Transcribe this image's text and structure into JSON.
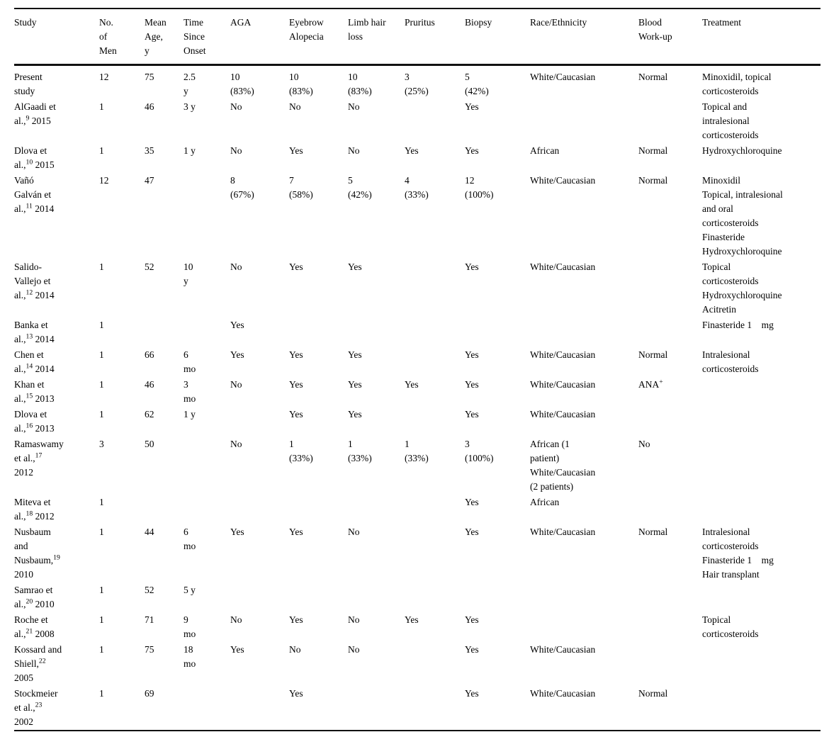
{
  "table": {
    "columns": [
      {
        "key": "study",
        "label": "Study"
      },
      {
        "key": "n_men",
        "label": "No.\nof\nMen"
      },
      {
        "key": "mean_age",
        "label": "Mean\nAge,\ny"
      },
      {
        "key": "onset",
        "label": "Time\nSince\nOnset"
      },
      {
        "key": "aga",
        "label": "AGA"
      },
      {
        "key": "eyebrow",
        "label": "Eyebrow\nAlopecia"
      },
      {
        "key": "limb",
        "label": "Limb hair\nloss"
      },
      {
        "key": "pruritus",
        "label": "Pruritus"
      },
      {
        "key": "biopsy",
        "label": "Biopsy"
      },
      {
        "key": "race",
        "label": "Race/Ethnicity"
      },
      {
        "key": "blood",
        "label": "Blood\nWork-up"
      },
      {
        "key": "treatment",
        "label": "Treatment"
      }
    ],
    "rows": [
      {
        "study": "Present\nstudy",
        "n_men": "12",
        "mean_age": "75",
        "onset": "2.5\ny",
        "aga": "10\n(83%)",
        "eyebrow": "10\n(83%)",
        "limb": "10\n(83%)",
        "pruritus": "3\n(25%)",
        "biopsy": "5\n(42%)",
        "race": "White/Caucasian",
        "blood": "Normal",
        "treatment": "Minoxidil, topical\ncorticosteroids"
      },
      {
        "study": "AlGaadi et\nal.,^{9} 2015",
        "n_men": "1",
        "mean_age": "46",
        "onset": "3 y",
        "aga": "No",
        "eyebrow": "No",
        "limb": "No",
        "pruritus": "",
        "biopsy": "Yes",
        "race": "",
        "blood": "",
        "treatment": "Topical and\nintralesional\ncorticosteroids"
      },
      {
        "study": "Dlova et\nal.,^{10} 2015",
        "n_men": "1",
        "mean_age": "35",
        "onset": "1 y",
        "aga": "No",
        "eyebrow": "Yes",
        "limb": "No",
        "pruritus": "Yes",
        "biopsy": "Yes",
        "race": "African",
        "blood": "Normal",
        "treatment": "Hydroxychloroquine"
      },
      {
        "study": "Vañó\nGalván et\nal.,^{11} 2014",
        "n_men": "12",
        "mean_age": "47",
        "onset": "",
        "aga": "8\n(67%)",
        "eyebrow": "7\n(58%)",
        "limb": "5\n(42%)",
        "pruritus": "4\n(33%)",
        "biopsy": "12\n(100%)",
        "race": "White/Caucasian",
        "blood": "Normal",
        "treatment": "Minoxidil\nTopical, intralesional\nand oral\ncorticosteroids\nFinasteride\nHydroxychloroquine"
      },
      {
        "study": "Salido-\nVallejo et\nal.,^{12} 2014",
        "n_men": "1",
        "mean_age": "52",
        "onset": "10\ny",
        "aga": "No",
        "eyebrow": "Yes",
        "limb": "Yes",
        "pruritus": "",
        "biopsy": "Yes",
        "race": "White/Caucasian",
        "blood": "",
        "treatment": "Topical\ncorticosteroids\nHydroxychloroquine\nAcitretin"
      },
      {
        "study": "Banka et\nal.,^{13} 2014",
        "n_men": "1",
        "mean_age": "",
        "onset": "",
        "aga": "Yes",
        "eyebrow": "",
        "limb": "",
        "pruritus": "",
        "biopsy": "",
        "race": "",
        "blood": "",
        "treatment": "Finasteride 1    mg"
      },
      {
        "study": "Chen et\nal.,^{14} 2014",
        "n_men": "1",
        "mean_age": "66",
        "onset": "6\nmo",
        "aga": "Yes",
        "eyebrow": "Yes",
        "limb": "Yes",
        "pruritus": "",
        "biopsy": "Yes",
        "race": "White/Caucasian",
        "blood": "Normal",
        "treatment": "Intralesional\ncorticosteroids"
      },
      {
        "study": "Khan et\nal.,^{15} 2013",
        "n_men": "1",
        "mean_age": "46",
        "onset": "3\nmo",
        "aga": "No",
        "eyebrow": "Yes",
        "limb": "Yes",
        "pruritus": "Yes",
        "biopsy": "Yes",
        "race": "White/Caucasian",
        "blood": "ANA^{+}",
        "treatment": ""
      },
      {
        "study": "Dlova et\nal.,^{16} 2013",
        "n_men": "1",
        "mean_age": "62",
        "onset": "1 y",
        "aga": "",
        "eyebrow": "Yes",
        "limb": "Yes",
        "pruritus": "",
        "biopsy": "Yes",
        "race": "White/Caucasian",
        "blood": "",
        "treatment": ""
      },
      {
        "study": "Ramaswamy\net al.,^{17}\n2012",
        "n_men": "3",
        "mean_age": "50",
        "onset": "",
        "aga": "No",
        "eyebrow": "1\n(33%)",
        "limb": "1\n(33%)",
        "pruritus": "1\n(33%)",
        "biopsy": "3\n(100%)",
        "race": "African (1\npatient)\nWhite/Caucasian\n(2 patients)",
        "blood": "No",
        "treatment": ""
      },
      {
        "study": "Miteva et\nal.,^{18} 2012",
        "n_men": "1",
        "mean_age": "",
        "onset": "",
        "aga": "",
        "eyebrow": "",
        "limb": "",
        "pruritus": "",
        "biopsy": "Yes",
        "race": "African",
        "blood": "",
        "treatment": ""
      },
      {
        "study": "Nusbaum\nand\nNusbaum,^{19}\n2010",
        "n_men": "1",
        "mean_age": "44",
        "onset": "6\nmo",
        "aga": "Yes",
        "eyebrow": "Yes",
        "limb": "No",
        "pruritus": "",
        "biopsy": "Yes",
        "race": "White/Caucasian",
        "blood": "Normal",
        "treatment": "Intralesional\ncorticosteroids\nFinasteride 1    mg\nHair transplant"
      },
      {
        "study": "Samrao et\nal.,^{20} 2010",
        "n_men": "1",
        "mean_age": "52",
        "onset": "5 y",
        "aga": "",
        "eyebrow": "",
        "limb": "",
        "pruritus": "",
        "biopsy": "",
        "race": "",
        "blood": "",
        "treatment": ""
      },
      {
        "study": "Roche et\nal.,^{21} 2008",
        "n_men": "1",
        "mean_age": "71",
        "onset": "9\nmo",
        "aga": "No",
        "eyebrow": "Yes",
        "limb": "No",
        "pruritus": "Yes",
        "biopsy": "Yes",
        "race": "",
        "blood": "",
        "treatment": "Topical\ncorticosteroids"
      },
      {
        "study": "Kossard and\nShiell,^{22}\n2005",
        "n_men": "1",
        "mean_age": "75",
        "onset": "18\nmo",
        "aga": "Yes",
        "eyebrow": "No",
        "limb": "No",
        "pruritus": "",
        "biopsy": "Yes",
        "race": "White/Caucasian",
        "blood": "",
        "treatment": ""
      },
      {
        "study": "Stockmeier\net al.,^{23}\n2002",
        "n_men": "1",
        "mean_age": "69",
        "onset": "",
        "aga": "",
        "eyebrow": "Yes",
        "limb": "",
        "pruritus": "",
        "biopsy": "Yes",
        "race": "White/Caucasian",
        "blood": "Normal",
        "treatment": ""
      }
    ]
  }
}
